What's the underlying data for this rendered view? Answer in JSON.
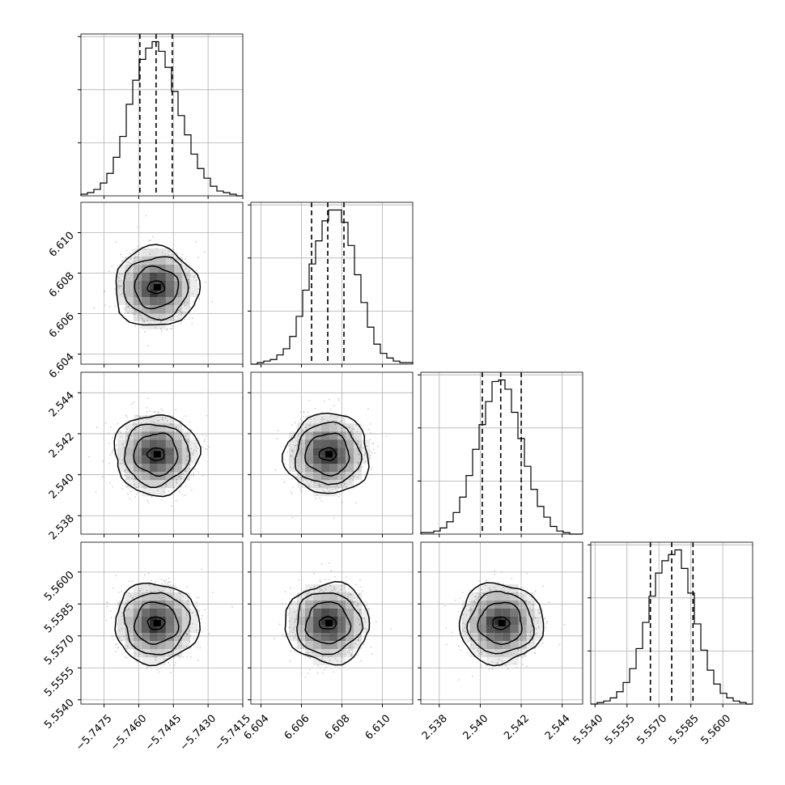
{
  "chart_data": {
    "type": "corner",
    "parameters": [
      {
        "range": [
          -5.7485,
          -5.7415
        ],
        "ticks": [
          -5.7475,
          -5.746,
          -5.7445,
          -5.743,
          -5.7415
        ],
        "tick_labels": [
          "−5.7475",
          "−5.7460",
          "−5.7445",
          "−5.7430",
          "−5.7415"
        ],
        "quantiles": [
          -5.74595,
          -5.74525,
          -5.74455
        ],
        "histogram": [
          1,
          2,
          4,
          8,
          14,
          24,
          37,
          57,
          72,
          85,
          92,
          96,
          90,
          80,
          65,
          50,
          38,
          26,
          17,
          11,
          6,
          3,
          2,
          1,
          0
        ]
      },
      {
        "range": [
          6.6035,
          6.6115
        ],
        "ticks": [
          6.604,
          6.606,
          6.608,
          6.61
        ],
        "tick_labels": [
          "6.604",
          "6.606",
          "6.608",
          "6.610"
        ],
        "quantiles": [
          6.6065,
          6.6073,
          6.6081
        ],
        "histogram": [
          0,
          1,
          2,
          3,
          6,
          10,
          18,
          31,
          48,
          65,
          80,
          93,
          100,
          100,
          92,
          77,
          58,
          40,
          24,
          13,
          7,
          4,
          2,
          1,
          1
        ]
      },
      {
        "range": [
          2.5371,
          2.545
        ],
        "ticks": [
          2.538,
          2.54,
          2.542,
          2.544
        ],
        "tick_labels": [
          "2.538",
          "2.540",
          "2.542",
          "2.544"
        ],
        "quantiles": [
          2.5401,
          2.541,
          2.542
        ],
        "histogram": [
          1,
          1,
          2,
          4,
          8,
          14,
          24,
          38,
          55,
          71,
          86,
          99,
          100,
          94,
          79,
          62,
          44,
          29,
          18,
          11,
          5,
          2,
          1,
          0,
          0
        ]
      },
      {
        "range": [
          5.5538,
          5.5614
        ],
        "ticks": [
          5.554,
          5.5555,
          5.557,
          5.5585,
          5.56
        ],
        "tick_labels": [
          "5.5540",
          "5.5555",
          "5.5570",
          "5.5585",
          "5.5600"
        ],
        "quantiles": [
          5.5566,
          5.5576,
          5.5586
        ],
        "histogram": [
          0,
          1,
          2,
          4,
          8,
          14,
          23,
          36,
          53,
          70,
          85,
          93,
          97,
          100,
          88,
          72,
          52,
          35,
          22,
          13,
          7,
          4,
          2,
          1,
          0
        ]
      }
    ],
    "pairs": [
      {
        "x": 0,
        "y": 1,
        "center": [
          -5.74525,
          6.6073
        ]
      },
      {
        "x": 0,
        "y": 2,
        "center": [
          -5.74525,
          2.541
        ]
      },
      {
        "x": 1,
        "y": 2,
        "center": [
          6.6073,
          2.541
        ]
      },
      {
        "x": 0,
        "y": 3,
        "center": [
          -5.74525,
          5.5576
        ]
      },
      {
        "x": 1,
        "y": 3,
        "center": [
          6.6073,
          5.5576
        ]
      },
      {
        "x": 2,
        "y": 3,
        "center": [
          2.541,
          5.5576
        ]
      }
    ],
    "grid": true,
    "colors": {
      "line": "#000000",
      "grid": "#b0b0b0",
      "scatter": "#9a9a9a",
      "density": "#000000"
    }
  }
}
